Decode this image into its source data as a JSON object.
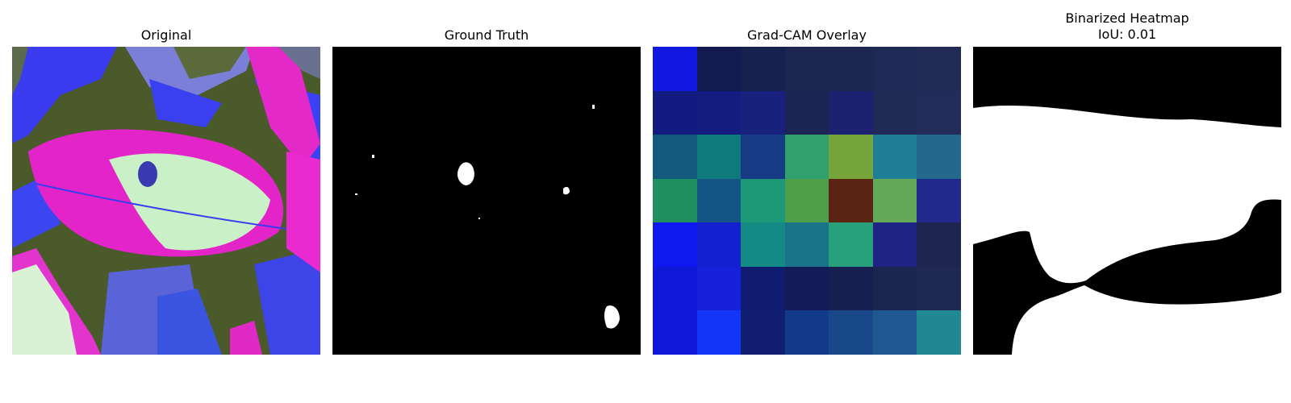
{
  "panels": [
    {
      "title": "Original"
    },
    {
      "title": "Ground Truth"
    },
    {
      "title": "Grad-CAM Overlay"
    },
    {
      "title": "Binarized Heatmap",
      "subtitle": "IoU: 0.01"
    }
  ],
  "gradcam_grid": [
    [
      "#1118e0",
      "#121a50",
      "#172150",
      "#1c2650",
      "#1e2752",
      "#1e2a55",
      "#212b55"
    ],
    [
      "#121c80",
      "#151c80",
      "#19217e",
      "#1c2552",
      "#1c2270",
      "#1f2a55",
      "#222c58"
    ],
    [
      "#135a7e",
      "#0e7a7c",
      "#163b84",
      "#31a06c",
      "#74a43a",
      "#1f7e96",
      "#25688e"
    ],
    [
      "#1e9060",
      "#155586",
      "#1c9a78",
      "#4e9e4a",
      "#5a2412",
      "#62a858",
      "#212a8c"
    ],
    [
      "#1018f0",
      "#1220d0",
      "#148a84",
      "#19748a",
      "#28a07c",
      "#1e2384",
      "#1e2550"
    ],
    [
      "#1018d8",
      "#1520d8",
      "#101c70",
      "#131c56",
      "#171f50",
      "#1c2450",
      "#1e2852"
    ],
    [
      "#0f18d8",
      "#1236f8",
      "#121e72",
      "#12398a",
      "#18478a",
      "#1f5890",
      "#1f8890"
    ]
  ]
}
